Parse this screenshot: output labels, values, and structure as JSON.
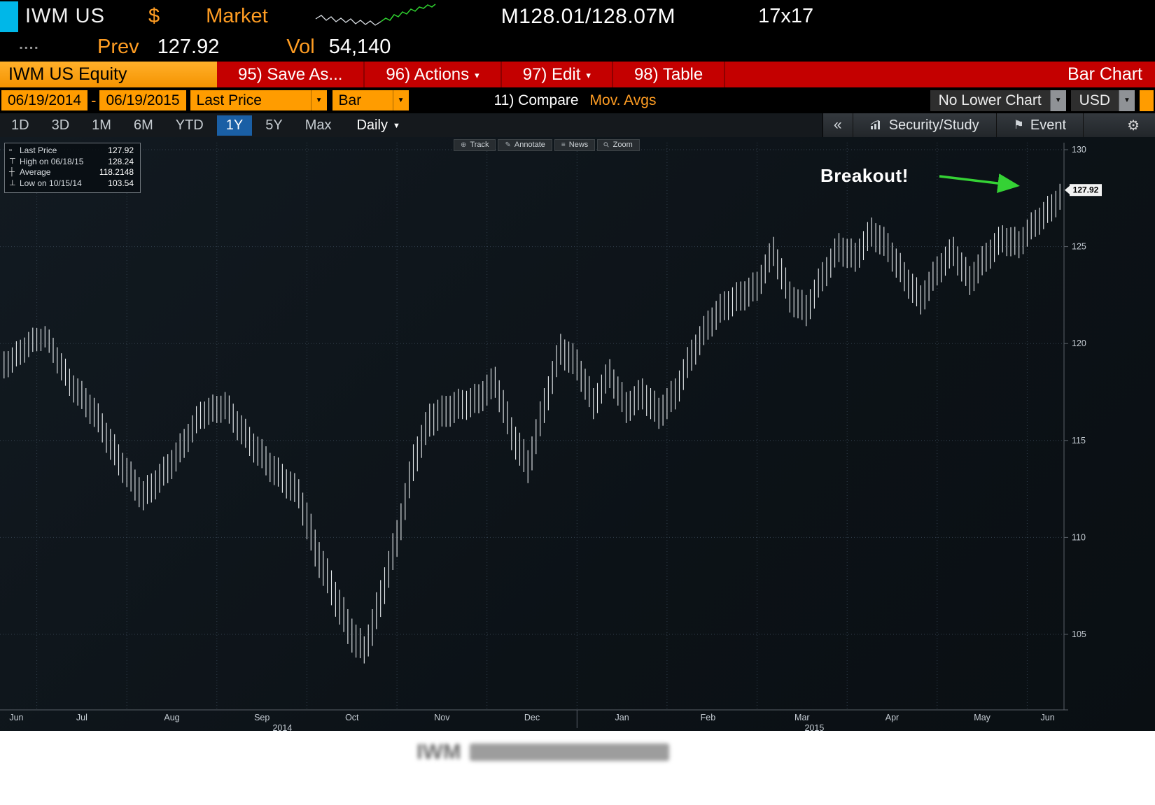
{
  "header": {
    "ticker": "IWM US",
    "currency_symbol": "$",
    "market_label": "Market",
    "bid_ask": "M128.01/128.07M",
    "lot_size": "17x17",
    "prev_label": "Prev",
    "prev_value": "127.92",
    "vol_label": "Vol",
    "vol_value": "54,140",
    "dots": "▪▪▪▪"
  },
  "menubar": {
    "security_title": "IWM US Equity",
    "save_as": "95) Save As...",
    "actions": "96) Actions",
    "edit": "97) Edit",
    "table": "98) Table",
    "right_label": "Bar Chart"
  },
  "toolbar": {
    "date_from": "06/19/2014",
    "date_separator": "-",
    "date_to": "06/19/2015",
    "price_field": "Last Price",
    "chart_style": "Bar",
    "compare_label": "11) Compare",
    "mov_avgs_label": "Mov. Avgs",
    "lower_chart": "No Lower Chart",
    "currency": "USD"
  },
  "tabs": {
    "periods": [
      "1D",
      "3D",
      "1M",
      "6M",
      "YTD",
      "1Y",
      "5Y",
      "Max"
    ],
    "selected": "1Y",
    "frequency": "Daily",
    "collapse_label": "«",
    "security_study_label": "Security/Study",
    "event_label": "Event"
  },
  "chart_tools": {
    "track": "Track",
    "annotate": "Annotate",
    "news": "News",
    "zoom": "Zoom"
  },
  "icons": {
    "dropdown": "▼",
    "caret_small": "▾",
    "flag": "⚑",
    "gear": "⚙",
    "track_icon": "⊕",
    "annotate_icon": "✎",
    "news_icon": "≡",
    "zoom_icon": "⚲"
  },
  "legend": {
    "items": [
      {
        "marker": "▫",
        "label": "Last Price",
        "value": "127.92"
      },
      {
        "marker": "⊤",
        "label": "High on 06/18/15",
        "value": "128.24"
      },
      {
        "marker": "┼",
        "label": "Average",
        "value": "118.2148"
      },
      {
        "marker": "⊥",
        "label": "Low on 10/15/14",
        "value": "103.54"
      }
    ]
  },
  "annotation": {
    "text": "Breakout!",
    "arrow_color": "#35d235"
  },
  "caption": {
    "visible_text": "IWM"
  },
  "chart_data": {
    "type": "bar",
    "title": "",
    "security": "IWM US Equity",
    "period": "06/19/2014 - 06/19/2015",
    "frequency": "Daily",
    "ylim": [
      102.5,
      130.6
    ],
    "y_ticks": [
      105,
      110,
      115,
      120,
      125,
      130
    ],
    "grid": "dotted",
    "legend_position": "top-left",
    "last_price": 127.92,
    "high": {
      "date": "06/18/15",
      "value": 128.24
    },
    "average": 118.2148,
    "low": {
      "date": "10/15/14",
      "value": 103.54
    },
    "x_months": [
      {
        "label": "Jun",
        "mid": 1.5
      },
      {
        "label": "Jul",
        "mid": 9.5
      },
      {
        "label": "Aug",
        "mid": 20.5
      },
      {
        "label": "Sep",
        "mid": 31.5
      },
      {
        "label": "Oct",
        "mid": 42.5
      },
      {
        "label": "Nov",
        "mid": 53.5
      },
      {
        "label": "Dec",
        "mid": 64.5
      },
      {
        "label": "Jan",
        "mid": 75.5
      },
      {
        "label": "Feb",
        "mid": 86
      },
      {
        "label": "Mar",
        "mid": 97.5
      },
      {
        "label": "Apr",
        "mid": 108.5
      },
      {
        "label": "May",
        "mid": 119.5
      },
      {
        "label": "Jun",
        "mid": 127.5
      }
    ],
    "month_boundaries": [
      4,
      15,
      26,
      37,
      48,
      59,
      70,
      81,
      92,
      103,
      114,
      125
    ],
    "year_labels": [
      {
        "label": "2014",
        "i": 34
      },
      {
        "label": "2015",
        "i": 99
      }
    ],
    "year_separator": 70,
    "bars": [
      [
        119.6,
        118.2
      ],
      [
        119.8,
        118.5
      ],
      [
        120.2,
        118.9
      ],
      [
        120.6,
        119.3
      ],
      [
        120.8,
        119.6
      ],
      [
        120.9,
        119.8
      ],
      [
        120.3,
        119.0
      ],
      [
        119.5,
        118.1
      ],
      [
        118.7,
        117.3
      ],
      [
        118.2,
        116.8
      ],
      [
        117.7,
        116.2
      ],
      [
        117.2,
        115.7
      ],
      [
        116.4,
        114.9
      ],
      [
        115.6,
        114.0
      ],
      [
        114.8,
        113.2
      ],
      [
        114.1,
        112.6
      ],
      [
        113.5,
        111.9
      ],
      [
        112.9,
        111.4
      ],
      [
        113.3,
        111.8
      ],
      [
        113.8,
        112.3
      ],
      [
        114.3,
        112.8
      ],
      [
        114.9,
        113.4
      ],
      [
        115.6,
        114.1
      ],
      [
        116.3,
        114.9
      ],
      [
        117.0,
        115.6
      ],
      [
        117.2,
        115.8
      ],
      [
        117.3,
        115.9
      ],
      [
        117.5,
        116.1
      ],
      [
        116.9,
        115.4
      ],
      [
        116.3,
        114.8
      ],
      [
        115.7,
        114.2
      ],
      [
        115.2,
        113.7
      ],
      [
        114.7,
        113.2
      ],
      [
        114.2,
        112.7
      ],
      [
        113.8,
        112.3
      ],
      [
        113.4,
        111.9
      ],
      [
        113.0,
        111.5
      ],
      [
        111.8,
        109.9
      ],
      [
        110.4,
        108.5
      ],
      [
        109.3,
        107.5
      ],
      [
        108.3,
        106.5
      ],
      [
        107.3,
        105.5
      ],
      [
        106.3,
        104.5
      ],
      [
        105.5,
        103.8
      ],
      [
        104.9,
        103.5
      ],
      [
        106.3,
        104.4
      ],
      [
        107.8,
        105.9
      ],
      [
        109.3,
        107.4
      ],
      [
        110.9,
        109.0
      ],
      [
        112.8,
        110.9
      ],
      [
        114.8,
        112.9
      ],
      [
        115.8,
        114.1
      ],
      [
        116.9,
        115.2
      ],
      [
        117.1,
        115.5
      ],
      [
        117.3,
        115.7
      ],
      [
        117.5,
        115.9
      ],
      [
        117.6,
        116.1
      ],
      [
        117.7,
        116.2
      ],
      [
        117.9,
        116.4
      ],
      [
        118.4,
        116.8
      ],
      [
        118.8,
        117.2
      ],
      [
        117.6,
        115.9
      ],
      [
        116.2,
        114.5
      ],
      [
        115.4,
        113.7
      ],
      [
        114.5,
        112.8
      ],
      [
        116.1,
        114.3
      ],
      [
        117.7,
        115.9
      ],
      [
        119.1,
        117.4
      ],
      [
        120.5,
        118.9
      ],
      [
        120.1,
        118.5
      ],
      [
        119.7,
        118.1
      ],
      [
        118.7,
        117.1
      ],
      [
        117.7,
        116.1
      ],
      [
        118.4,
        116.9
      ],
      [
        119.2,
        117.7
      ],
      [
        118.3,
        116.8
      ],
      [
        117.5,
        115.9
      ],
      [
        117.8,
        116.3
      ],
      [
        118.2,
        116.6
      ],
      [
        117.7,
        116.1
      ],
      [
        117.2,
        115.6
      ],
      [
        117.7,
        116.1
      ],
      [
        118.2,
        116.6
      ],
      [
        119.2,
        117.6
      ],
      [
        120.2,
        118.6
      ],
      [
        120.9,
        119.4
      ],
      [
        121.7,
        120.2
      ],
      [
        122.2,
        120.7
      ],
      [
        122.7,
        121.2
      ],
      [
        122.9,
        121.4
      ],
      [
        123.2,
        121.7
      ],
      [
        123.4,
        121.9
      ],
      [
        123.7,
        122.2
      ],
      [
        124.6,
        123.1
      ],
      [
        125.5,
        124.0
      ],
      [
        124.4,
        122.8
      ],
      [
        123.2,
        121.6
      ],
      [
        122.8,
        121.3
      ],
      [
        122.5,
        120.9
      ],
      [
        123.3,
        121.8
      ],
      [
        124.2,
        122.7
      ],
      [
        124.9,
        123.4
      ],
      [
        125.7,
        124.2
      ],
      [
        125.4,
        123.9
      ],
      [
        125.2,
        123.7
      ],
      [
        125.8,
        124.3
      ],
      [
        126.5,
        125.0
      ],
      [
        126.1,
        124.6
      ],
      [
        125.7,
        124.2
      ],
      [
        124.9,
        123.4
      ],
      [
        124.2,
        122.7
      ],
      [
        123.6,
        122.1
      ],
      [
        123.0,
        121.5
      ],
      [
        123.7,
        122.2
      ],
      [
        124.5,
        123.0
      ],
      [
        125.0,
        123.5
      ],
      [
        125.5,
        124.0
      ],
      [
        124.7,
        123.2
      ],
      [
        124.0,
        122.5
      ],
      [
        124.6,
        123.1
      ],
      [
        125.2,
        123.7
      ],
      [
        125.7,
        124.2
      ],
      [
        126.1,
        124.7
      ],
      [
        126.0,
        124.5
      ],
      [
        125.8,
        124.4
      ],
      [
        126.4,
        125.0
      ],
      [
        126.9,
        125.5
      ],
      [
        127.3,
        125.9
      ],
      [
        127.7,
        126.3
      ],
      [
        128.24,
        126.9
      ]
    ]
  }
}
